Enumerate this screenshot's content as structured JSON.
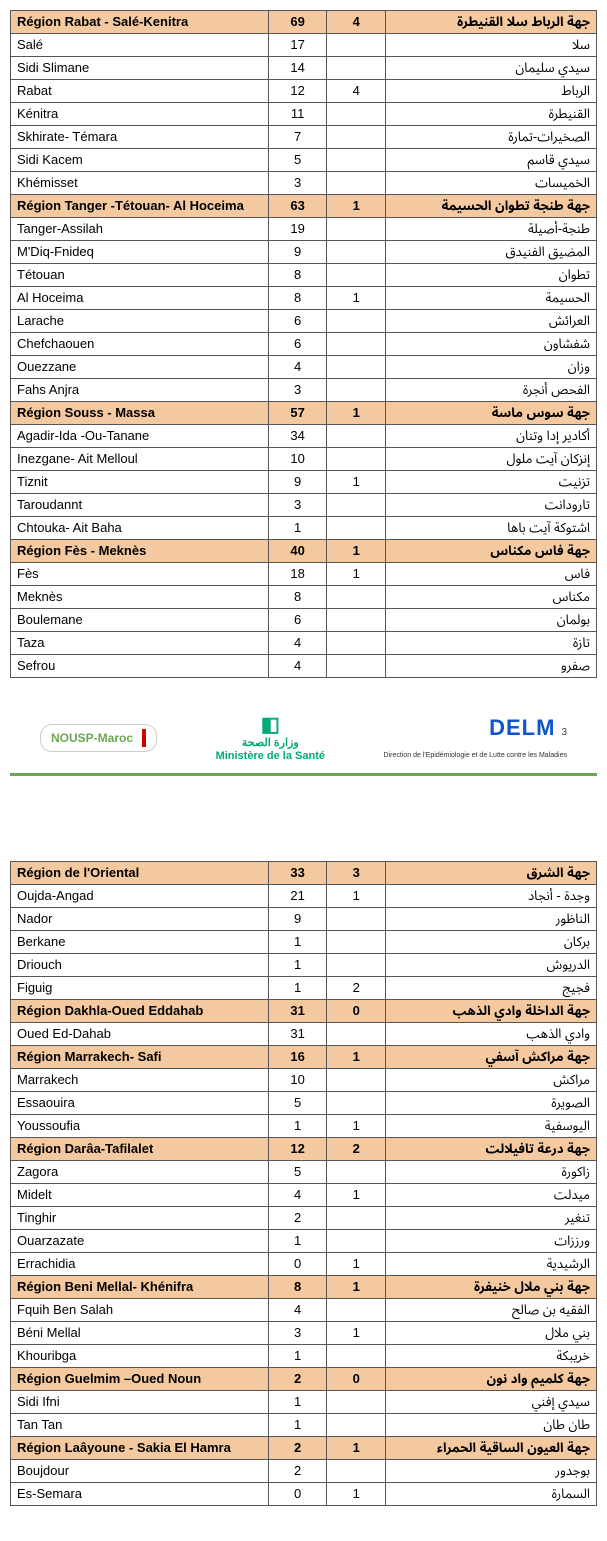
{
  "region_bg": "#f5c9a0",
  "page_number": "3",
  "logos": {
    "left": "NOUSP-Maroc",
    "center_top": "◧",
    "center_text": "وزارة الصحة",
    "center_sub": "Ministère de la Santé",
    "right": "DELM",
    "right_sub": "Direction de l'Epidémiologie\net de Lutte contre les Maladies"
  },
  "tables": [
    [
      {
        "region": true,
        "fr": "Région Rabat - Salé-Kenitra",
        "n1": "69",
        "n2": "4",
        "ar": "جهة الرباط سلا القنيطرة"
      },
      {
        "fr": "Salé",
        "n1": "17",
        "n2": "",
        "ar": "سلا"
      },
      {
        "fr": "Sidi Slimane",
        "n1": "14",
        "n2": "",
        "ar": "سيدي سليمان"
      },
      {
        "fr": "Rabat",
        "n1": "12",
        "n2": "4",
        "ar": "الرباط"
      },
      {
        "fr": "Kénitra",
        "n1": "11",
        "n2": "",
        "ar": "القنيطرة"
      },
      {
        "fr": "Skhirate- Témara",
        "n1": "7",
        "n2": "",
        "ar": "الصخيرات-تمارة"
      },
      {
        "fr": "Sidi Kacem",
        "n1": "5",
        "n2": "",
        "ar": "سيدي قاسم"
      },
      {
        "fr": "Khémisset",
        "n1": "3",
        "n2": "",
        "ar": "الخميسات"
      },
      {
        "region": true,
        "fr": "Région Tanger -Tétouan- Al Hoceima",
        "n1": "63",
        "n2": "1",
        "ar": "جهة طنجة تطوان الحسيمة"
      },
      {
        "fr": "Tanger-Assilah",
        "n1": "19",
        "n2": "",
        "ar": "طنجة-أصيلة"
      },
      {
        "fr": "M'Diq-Fnideq",
        "n1": "9",
        "n2": "",
        "ar": "المضيق الفنيدق"
      },
      {
        "fr": "Tétouan",
        "n1": "8",
        "n2": "",
        "ar": "تطوان"
      },
      {
        "fr": "Al Hoceima",
        "n1": "8",
        "n2": "1",
        "ar": "الحسيمة"
      },
      {
        "fr": "Larache",
        "n1": "6",
        "n2": "",
        "ar": "العرائش"
      },
      {
        "fr": "Chefchaouen",
        "n1": "6",
        "n2": "",
        "ar": "شفشاون"
      },
      {
        "fr": "Ouezzane",
        "n1": "4",
        "n2": "",
        "ar": "وزان"
      },
      {
        "fr": "Fahs Anjra",
        "n1": "3",
        "n2": "",
        "ar": "الفحص أنجرة"
      },
      {
        "region": true,
        "fr": "Région Souss - Massa",
        "n1": "57",
        "n2": "1",
        "ar": "جهة سوس ماسة"
      },
      {
        "fr": "Agadir-Ida -Ou-Tanane",
        "n1": "34",
        "n2": "",
        "ar": "أكادير إدا وتنان"
      },
      {
        "fr": "Inezgane- Ait Melloul",
        "n1": "10",
        "n2": "",
        "ar": "إنزكان آيت ملول"
      },
      {
        "fr": "Tiznit",
        "n1": "9",
        "n2": "1",
        "ar": "تزنيت"
      },
      {
        "fr": "Taroudannt",
        "n1": "3",
        "n2": "",
        "ar": "تارودانت"
      },
      {
        "fr": "Chtouka- Ait Baha",
        "n1": "1",
        "n2": "",
        "ar": "اشتوكة آيت باها"
      },
      {
        "region": true,
        "fr": "Région Fès - Meknès",
        "n1": "40",
        "n2": "1",
        "ar": "جهة فاس مكناس"
      },
      {
        "fr": "Fès",
        "n1": "18",
        "n2": "1",
        "ar": "فاس"
      },
      {
        "fr": "Meknès",
        "n1": "8",
        "n2": "",
        "ar": "مكناس"
      },
      {
        "fr": "Boulemane",
        "n1": "6",
        "n2": "",
        "ar": "بولمان"
      },
      {
        "fr": "Taza",
        "n1": "4",
        "n2": "",
        "ar": "تازة"
      },
      {
        "fr": "Sefrou",
        "n1": "4",
        "n2": "",
        "ar": "صفرو"
      }
    ],
    [
      {
        "region": true,
        "fr": "Région de l'Oriental",
        "n1": "33",
        "n2": "3",
        "ar": "جهة الشرق"
      },
      {
        "fr": "Oujda-Angad",
        "n1": "21",
        "n2": "1",
        "ar": "وجدة - أنجاد"
      },
      {
        "fr": "Nador",
        "n1": "9",
        "n2": "",
        "ar": "الناظور"
      },
      {
        "fr": "Berkane",
        "n1": "1",
        "n2": "",
        "ar": "بركان"
      },
      {
        "fr": "Driouch",
        "n1": "1",
        "n2": "",
        "ar": "الدريوش"
      },
      {
        "fr": "Figuig",
        "n1": "1",
        "n2": "2",
        "ar": "فجيج"
      },
      {
        "region": true,
        "fr": "Région Dakhla-Oued Eddahab",
        "n1": "31",
        "n2": "0",
        "ar": "جهة الداخلة وادي الذهب"
      },
      {
        "fr": "Oued Ed-Dahab",
        "n1": "31",
        "n2": "",
        "ar": "وادي الذهب"
      },
      {
        "region": true,
        "fr": "Région Marrakech- Safi",
        "n1": "16",
        "n2": "1",
        "ar": "جهة مراكش آسفي"
      },
      {
        "fr": "Marrakech",
        "n1": "10",
        "n2": "",
        "ar": "مراكش"
      },
      {
        "fr": "Essaouira",
        "n1": "5",
        "n2": "",
        "ar": "الصويرة"
      },
      {
        "fr": "Youssoufia",
        "n1": "1",
        "n2": "1",
        "ar": "اليوسفية"
      },
      {
        "region": true,
        "fr": "Région Darâa-Tafilalet",
        "n1": "12",
        "n2": "2",
        "ar": "جهة درعة تافيلالت"
      },
      {
        "fr": "Zagora",
        "n1": "5",
        "n2": "",
        "ar": "زاكورة"
      },
      {
        "fr": "Midelt",
        "n1": "4",
        "n2": "1",
        "ar": "ميدلت"
      },
      {
        "fr": "Tinghir",
        "n1": "2",
        "n2": "",
        "ar": "تنغير"
      },
      {
        "fr": "Ouarzazate",
        "n1": "1",
        "n2": "",
        "ar": "ورززات"
      },
      {
        "fr": "Errachidia",
        "n1": "0",
        "n2": "1",
        "ar": "الرشيدية"
      },
      {
        "region": true,
        "fr": "Région Beni Mellal- Khénifra",
        "n1": "8",
        "n2": "1",
        "ar": "جهة بني ملال خنيفرة"
      },
      {
        "fr": "Fquih Ben Salah",
        "n1": "4",
        "n2": "",
        "ar": "الفقيه بن صالح"
      },
      {
        "fr": "Béni Mellal",
        "n1": "3",
        "n2": "1",
        "ar": "بني ملال"
      },
      {
        "fr": "Khouribga",
        "n1": "1",
        "n2": "",
        "ar": "خريبكة"
      },
      {
        "region": true,
        "fr": "Région Guelmim –Oued Noun",
        "n1": "2",
        "n2": "0",
        "ar": "جهة كلميم واد نون"
      },
      {
        "fr": "Sidi Ifni",
        "n1": "1",
        "n2": "",
        "ar": "سيدي إفني"
      },
      {
        "fr": "Tan Tan",
        "n1": "1",
        "n2": "",
        "ar": "طان طان"
      },
      {
        "region": true,
        "fr": "Région Laâyoune - Sakia El Hamra",
        "n1": "2",
        "n2": "1",
        "ar": "جهة العيون الساقية الحمراء"
      },
      {
        "fr": "Boujdour",
        "n1": "2",
        "n2": "",
        "ar": "بوجدور"
      },
      {
        "fr": "Es-Semara",
        "n1": "0",
        "n2": "1",
        "ar": "السمارة"
      }
    ]
  ]
}
